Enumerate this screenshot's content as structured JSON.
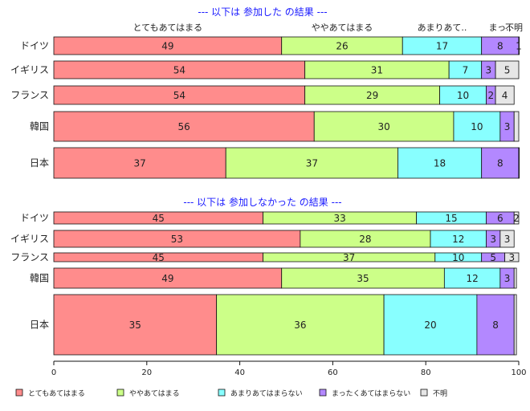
{
  "chart_data": {
    "type": "bar",
    "orientation": "horizontal-stacked-100",
    "x_ticks": [
      0,
      20,
      40,
      60,
      80,
      100
    ],
    "xlim": [
      0,
      100
    ],
    "legend_position": "bottom",
    "categories_legend": [
      "とてもあてはまる",
      "ややあてはまる",
      "あまりあてはまらない",
      "まったくあてはまらない",
      "不明"
    ],
    "colors": [
      "#ff8c8c",
      "#ccff88",
      "#88ffff",
      "#b388ff",
      "#e6e6e6"
    ],
    "panels": [
      {
        "title": "--- 以下は 参加した の結果 ---",
        "top_labels": [
          "とてもあてはまる",
          "ややあてはまる",
          "あまりあて..",
          "まっ..",
          "不明"
        ],
        "rows": [
          {
            "label": "ドイツ",
            "values": [
              49,
              26,
              17,
              8,
              1
            ],
            "labels": [
              "49",
              "26",
              "17",
              "8",
              "1"
            ]
          },
          {
            "label": "イギリス",
            "values": [
              54,
              31,
              7,
              3,
              5
            ],
            "labels": [
              "54",
              "31",
              "7",
              "3",
              "5"
            ]
          },
          {
            "label": "フランス",
            "values": [
              54,
              29,
              10,
              2,
              4
            ],
            "labels": [
              "54",
              "29",
              "10",
              "2",
              "4"
            ]
          },
          {
            "label": "韓国",
            "values": [
              56,
              30,
              10,
              3,
              1
            ],
            "labels": [
              "56",
              "30",
              "10",
              "3",
              ""
            ]
          },
          {
            "label": "日本",
            "values": [
              37,
              37,
              18,
              8,
              0.3
            ],
            "labels": [
              "37",
              "37",
              "18",
              "8",
              ""
            ]
          }
        ]
      },
      {
        "title": "--- 以下は 参加しなかった の結果 ---",
        "rows": [
          {
            "label": "ドイツ",
            "values": [
              45,
              33,
              15,
              6,
              2
            ],
            "labels": [
              "45",
              "33",
              "15",
              "6",
              "2"
            ]
          },
          {
            "label": "イギリス",
            "values": [
              53,
              28,
              12,
              3,
              3
            ],
            "labels": [
              "53",
              "28",
              "12",
              "3",
              "3"
            ]
          },
          {
            "label": "フランス",
            "values": [
              45,
              37,
              10,
              5,
              3
            ],
            "labels": [
              "45",
              "37",
              "10",
              "5",
              "3"
            ]
          },
          {
            "label": "韓国",
            "values": [
              49,
              35,
              12,
              3,
              0.5
            ],
            "labels": [
              "49",
              "35",
              "12",
              "3",
              ""
            ]
          },
          {
            "label": "日本",
            "values": [
              35,
              36,
              20,
              8,
              0.5
            ],
            "labels": [
              "35",
              "36",
              "20",
              "8",
              ""
            ]
          }
        ]
      }
    ]
  }
}
